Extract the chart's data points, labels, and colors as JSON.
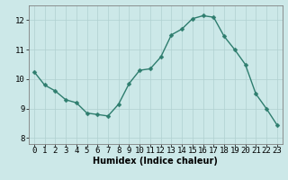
{
  "x": [
    0,
    1,
    2,
    3,
    4,
    5,
    6,
    7,
    8,
    9,
    10,
    11,
    12,
    13,
    14,
    15,
    16,
    17,
    18,
    19,
    20,
    21,
    22,
    23
  ],
  "y": [
    10.25,
    9.8,
    9.6,
    9.3,
    9.2,
    8.85,
    8.8,
    8.75,
    9.15,
    9.85,
    10.3,
    10.35,
    10.75,
    11.5,
    11.7,
    12.05,
    12.15,
    12.1,
    11.45,
    11.0,
    10.5,
    9.5,
    9.0,
    8.45
  ],
  "line_color": "#2e7d6e",
  "marker": "D",
  "marker_size": 2.5,
  "bg_color": "#cce8e8",
  "grid_color": "#b0d0d0",
  "xlabel": "Humidex (Indice chaleur)",
  "ylim": [
    7.8,
    12.5
  ],
  "xlim": [
    -0.5,
    23.5
  ],
  "yticks": [
    8,
    9,
    10,
    11,
    12
  ],
  "xlabel_fontsize": 7,
  "tick_fontsize": 6.5,
  "line_width": 1.0
}
